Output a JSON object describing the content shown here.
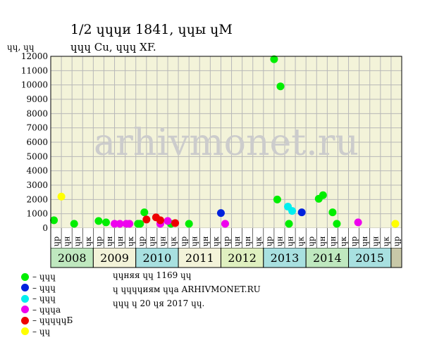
{
  "title": "1/2 ɥɥɥи 1841, ɥɥы ɥМ",
  "subtitle": "ɥɥɥ Cu, ɥɥɥ XF.",
  "ylabel": "ɥɥ, ɥɥ",
  "watermark": "arhivmonet.ru",
  "colors": {
    "plot_bg": "#f3f3d9",
    "grid": "#b8b8b8",
    "watermark": "#cccccc"
  },
  "legend": [
    {
      "label": "– ɥɥɥ",
      "color": "#00ee00"
    },
    {
      "label": "– ɥɥɥ",
      "color": "#0022dd"
    },
    {
      "label": "– ɥɥɥ",
      "color": "#00eeee"
    },
    {
      "label": "– ɥɥɥа",
      "color": "#ee00ee"
    },
    {
      "label": "– ɥɥɥɥɥБ",
      "color": "#ee0000"
    },
    {
      "label": "– ɥɥ",
      "color": "#ffff00"
    }
  ],
  "notes": [
    "ɥɥняя ɥɥ 1169 ɥɥ",
    "ɥ ɥɥɥɥиям ɥɥа ARHIVMONET.RU",
    "ɥɥɥ ɥ 20 ɥя 2017 ɥɥ."
  ],
  "chart_data": {
    "type": "scatter",
    "ylim": [
      0,
      12000
    ],
    "yticks": [
      "0",
      "1000",
      "2000",
      "3000",
      "4000",
      "5000",
      "6000",
      "7000",
      "8000",
      "9000",
      "10000",
      "11000",
      "12000"
    ],
    "quarter_labels": [
      "ɥр",
      "ɥн",
      "ɥн",
      "ɥк",
      "ɥр",
      "ɥн",
      "ɥн",
      "ɥк",
      "ɥр",
      "ɥн",
      "ɥн",
      "ɥк",
      "ɥр",
      "ɥн",
      "ɥн",
      "ɥк",
      "ɥр",
      "ɥн",
      "ɥн",
      "ɥк",
      "ɥр",
      "ɥн",
      "ɥн",
      "ɥк",
      "ɥр",
      "ɥн",
      "ɥн",
      "ɥк",
      "ɥр",
      "ɥн",
      "ɥн",
      "ɥк",
      "ɥр"
    ],
    "years": [
      {
        "label": "2008",
        "color": "#bfe8bf"
      },
      {
        "label": "2009",
        "color": "#f3f3d9"
      },
      {
        "label": "2010",
        "color": "#a8e0e0"
      },
      {
        "label": "2011",
        "color": "#f3f3d9"
      },
      {
        "label": "2012",
        "color": "#dff0c0"
      },
      {
        "label": "2013",
        "color": "#a8e0e0"
      },
      {
        "label": "2014",
        "color": "#bfe8bf"
      },
      {
        "label": "2015",
        "color": "#a8e0e0"
      },
      {
        "label": "",
        "color": "#c8c8a8"
      }
    ],
    "series": [
      {
        "color": "#00ee00",
        "points": [
          [
            0.3,
            550
          ],
          [
            2.2,
            300
          ],
          [
            4.5,
            500
          ],
          [
            5.2,
            400
          ],
          [
            8.4,
            300
          ],
          [
            11.3,
            300
          ],
          [
            13.0,
            300
          ],
          [
            21.0,
            11800
          ],
          [
            21.3,
            2000
          ],
          [
            21.6,
            9900
          ],
          [
            22.4,
            300
          ],
          [
            25.2,
            2050
          ],
          [
            25.6,
            2300
          ],
          [
            26.5,
            1100
          ],
          [
            26.9,
            300
          ],
          [
            8.2,
            300
          ],
          [
            8.8,
            1100
          ]
        ]
      },
      {
        "color": "#0022dd",
        "points": [
          [
            16.0,
            1050
          ],
          [
            23.6,
            1100
          ]
        ]
      },
      {
        "color": "#00eeee",
        "points": [
          [
            22.3,
            1500
          ],
          [
            22.7,
            1200
          ]
        ]
      },
      {
        "color": "#ee00ee",
        "points": [
          [
            6.0,
            300
          ],
          [
            6.5,
            300
          ],
          [
            7.1,
            300
          ],
          [
            7.4,
            300
          ],
          [
            10.3,
            300
          ],
          [
            11.0,
            500
          ],
          [
            16.4,
            300
          ],
          [
            28.9,
            400
          ]
        ]
      },
      {
        "color": "#ee0000",
        "points": [
          [
            9.0,
            600
          ],
          [
            9.9,
            750
          ],
          [
            10.3,
            550
          ],
          [
            11.7,
            350
          ]
        ]
      },
      {
        "color": "#ffff00",
        "points": [
          [
            1.0,
            2200
          ],
          [
            32.4,
            300
          ]
        ]
      }
    ]
  }
}
